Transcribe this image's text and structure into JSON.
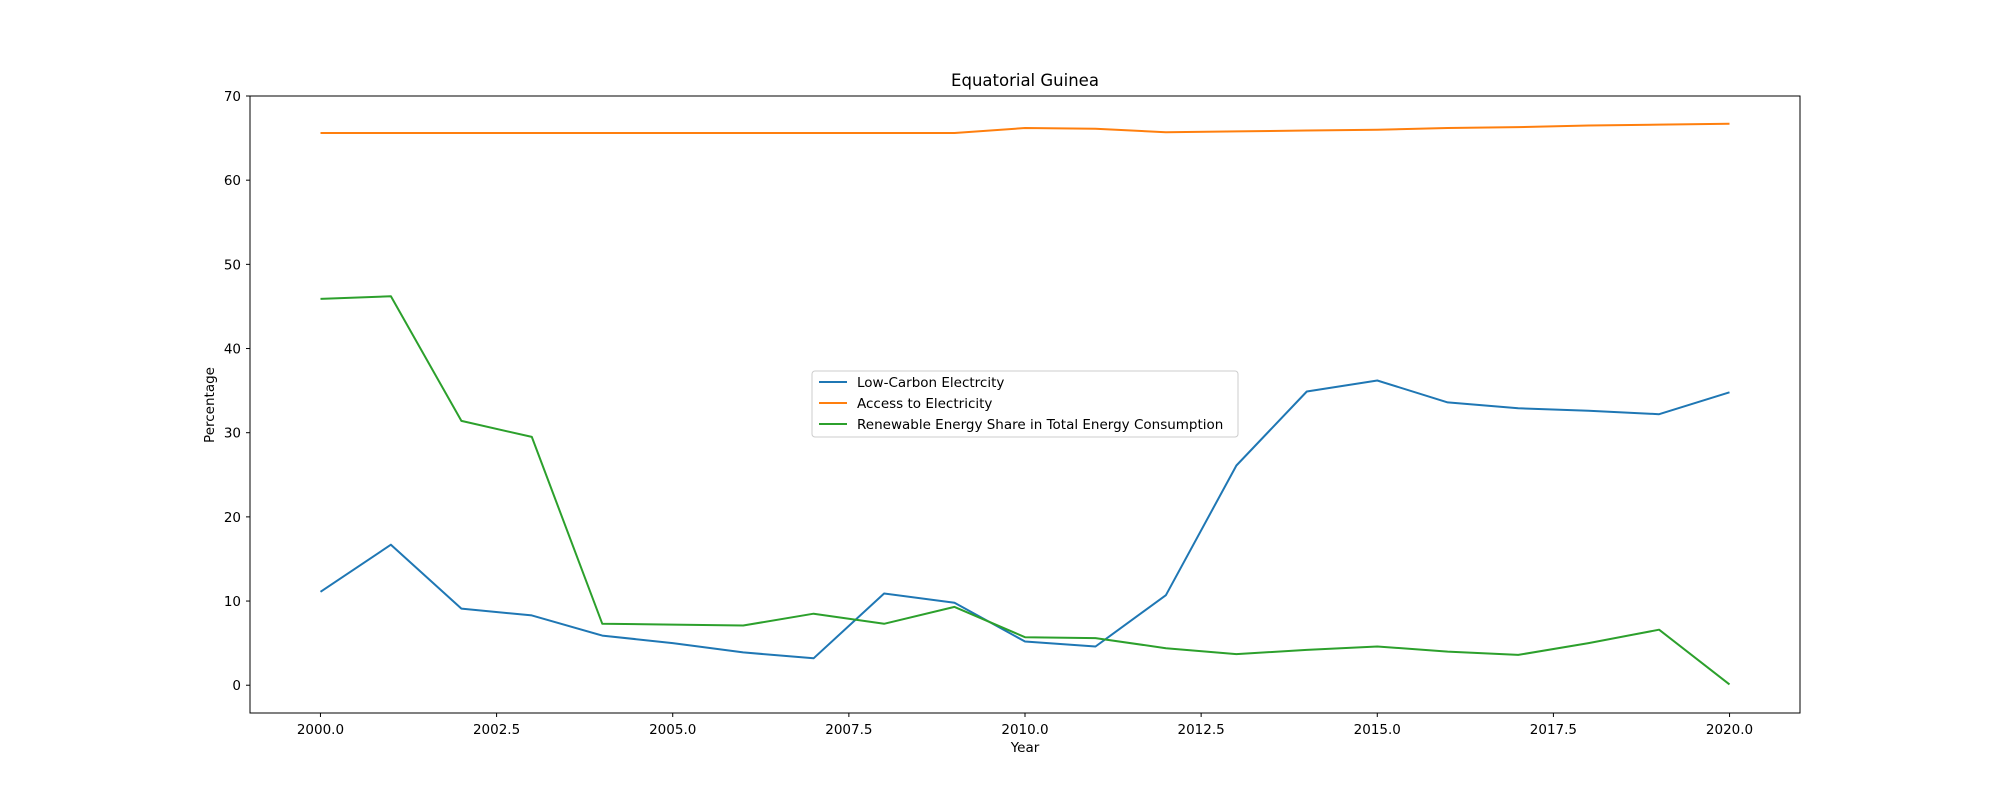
{
  "chart_data": {
    "type": "line",
    "title": "Equatorial Guinea",
    "xlabel": "Year",
    "ylabel": "Percentage",
    "xlim": [
      1999,
      2021
    ],
    "ylim": [
      -3.3,
      70
    ],
    "xticks": [
      2000.0,
      2002.5,
      2005.0,
      2007.5,
      2010.0,
      2012.5,
      2015.0,
      2017.5,
      2020.0
    ],
    "xtick_labels": [
      "2000.0",
      "2002.5",
      "2005.0",
      "2007.5",
      "2010.0",
      "2012.5",
      "2015.0",
      "2017.5",
      "2020.0"
    ],
    "yticks": [
      0,
      10,
      20,
      30,
      40,
      50,
      60,
      70
    ],
    "ytick_labels": [
      "0",
      "10",
      "20",
      "30",
      "40",
      "50",
      "60",
      "70"
    ],
    "grid": false,
    "legend_position": "center",
    "x": [
      2000,
      2001,
      2002,
      2003,
      2004,
      2005,
      2006,
      2007,
      2008,
      2009,
      2010,
      2011,
      2012,
      2013,
      2014,
      2015,
      2016,
      2017,
      2018,
      2019,
      2020
    ],
    "series": [
      {
        "name": "Low-Carbon Electrcity",
        "color": "#1f77b4",
        "values": [
          11.1,
          16.7,
          9.1,
          8.3,
          5.9,
          5.0,
          3.9,
          3.2,
          10.9,
          9.8,
          5.2,
          4.6,
          10.7,
          26.1,
          34.9,
          36.2,
          33.6,
          32.9,
          32.6,
          32.2,
          34.8
        ]
      },
      {
        "name": "Access to Electricity",
        "color": "#ff7f0e",
        "values": [
          65.6,
          65.6,
          65.6,
          65.6,
          65.6,
          65.6,
          65.6,
          65.6,
          65.6,
          65.6,
          66.2,
          66.1,
          65.7,
          65.8,
          65.9,
          66.0,
          66.2,
          66.3,
          66.5,
          66.6,
          66.7
        ]
      },
      {
        "name": "Renewable Energy Share in Total Energy Consumption",
        "color": "#2ca02c",
        "values": [
          45.9,
          46.2,
          31.4,
          29.5,
          7.3,
          7.2,
          7.1,
          8.5,
          7.3,
          9.3,
          5.7,
          5.6,
          4.4,
          3.7,
          4.2,
          4.6,
          4.0,
          3.6,
          5.0,
          6.6,
          0.1
        ]
      }
    ]
  }
}
